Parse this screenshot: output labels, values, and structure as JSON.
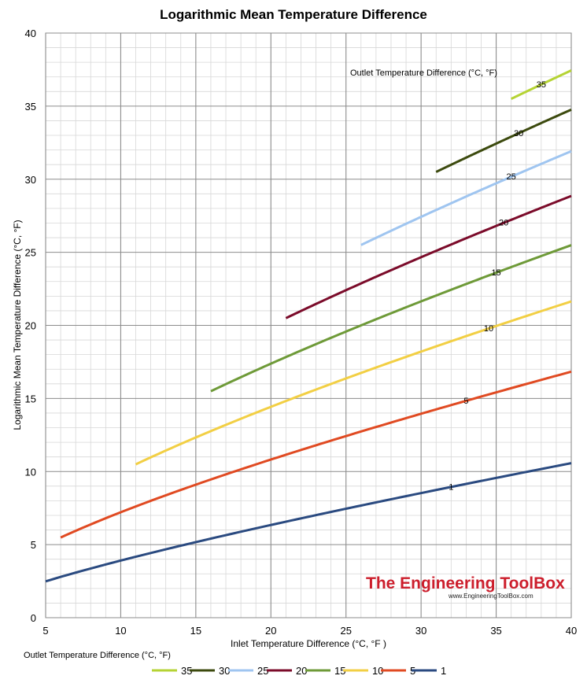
{
  "chart_data": {
    "type": "line",
    "title": "Logarithmic Mean Temperature Difference",
    "xlabel": "Inlet Temperature Difference (°C, °F )",
    "ylabel": "Logarithmic Mean Temperature Difference (°C, °F)",
    "xlim": [
      5,
      40
    ],
    "ylim": [
      0,
      40
    ],
    "x_ticks": [
      "5",
      "10",
      "15",
      "20",
      "25",
      "30",
      "35",
      "40"
    ],
    "y_ticks": [
      "0",
      "5",
      "10",
      "15",
      "20",
      "25",
      "30",
      "35",
      "40"
    ],
    "grid": true,
    "annotation": "Outlet Temperature Difference (°C, °F)",
    "legend_title": "Outlet Temperature Difference (°C, °F)",
    "legend_position": "bottom",
    "series": [
      {
        "name": "35",
        "color": "#b5d334",
        "outlet": 35,
        "x_start": 36,
        "x_end": 40,
        "label_x": 38
      },
      {
        "name": "30",
        "color": "#3c4a0e",
        "outlet": 30,
        "x_start": 31,
        "x_end": 40,
        "label_x": 36.5
      },
      {
        "name": "25",
        "color": "#9fc5f0",
        "outlet": 25,
        "x_start": 26,
        "x_end": 40,
        "label_x": 36
      },
      {
        "name": "20",
        "color": "#7b0b2a",
        "outlet": 20,
        "x_start": 21,
        "x_end": 40,
        "label_x": 35.5
      },
      {
        "name": "15",
        "color": "#6e9a38",
        "outlet": 15,
        "x_start": 16,
        "x_end": 40,
        "label_x": 35
      },
      {
        "name": "10",
        "color": "#f2cf44",
        "outlet": 10,
        "x_start": 11,
        "x_end": 40,
        "label_x": 34.5
      },
      {
        "name": "5",
        "color": "#e04a22",
        "outlet": 5,
        "x_start": 6,
        "x_end": 40,
        "label_x": 33
      },
      {
        "name": "1",
        "color": "#2a4a80",
        "outlet": 1,
        "x_start": 5,
        "x_end": 40,
        "label_x": 32
      }
    ]
  },
  "watermark": {
    "title": "The Engineering ToolBox",
    "url": "www.EngineeringToolBox.com",
    "color": "#cc1e2c"
  }
}
